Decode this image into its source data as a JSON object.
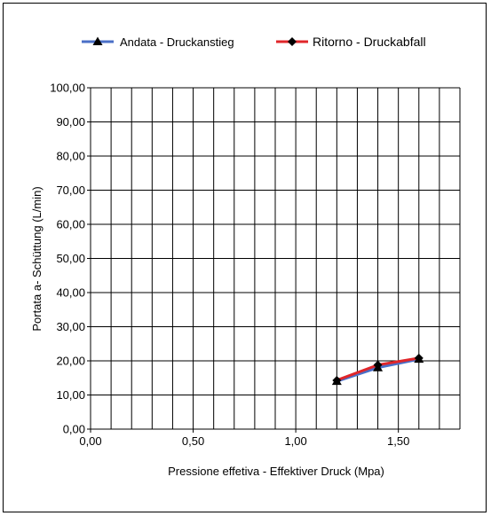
{
  "chart_data": {
    "type": "line",
    "title": "",
    "xlabel": "Pressione effetiva - Effektiver Druck (Mpa)",
    "ylabel": "Portata a- Schüttung (L/min)",
    "xlim": [
      0,
      1.8
    ],
    "ylim": [
      0,
      100
    ],
    "x_ticks": [
      "0,00",
      "0,50",
      "1,00",
      "1,50"
    ],
    "x_tick_values": [
      0,
      0.5,
      1.0,
      1.5
    ],
    "x_grid_step": 0.1,
    "y_ticks": [
      "0,00",
      "10,00",
      "20,00",
      "30,00",
      "40,00",
      "50,00",
      "60,00",
      "70,00",
      "80,00",
      "90,00",
      "100,00"
    ],
    "y_tick_values": [
      0,
      10,
      20,
      30,
      40,
      50,
      60,
      70,
      80,
      90,
      100
    ],
    "grid": true,
    "legend_position": "top",
    "series": [
      {
        "name": "Andata - Druckanstieg",
        "color": "#4a6fc7",
        "marker": "triangle",
        "x": [
          1.2,
          1.4,
          1.6
        ],
        "y": [
          14.0,
          18.0,
          20.5
        ]
      },
      {
        "name": "Ritorno - Druckabfall",
        "color": "#e0262a",
        "marker": "diamond",
        "x": [
          1.2,
          1.4,
          1.6
        ],
        "y": [
          14.3,
          18.8,
          20.8
        ]
      }
    ]
  }
}
